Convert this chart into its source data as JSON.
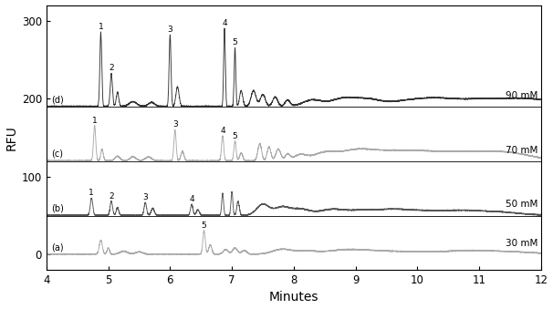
{
  "xlim": [
    4,
    12
  ],
  "ylim": [
    -20,
    320
  ],
  "xlabel": "Minutes",
  "ylabel": "RFU",
  "yticks": [
    0,
    100,
    200,
    300
  ],
  "xticks": [
    4,
    5,
    6,
    7,
    8,
    9,
    10,
    11,
    12
  ],
  "offsets": [
    0,
    50,
    120,
    190
  ],
  "colors": [
    "#aaaaaa",
    "#555555",
    "#aaaaaa",
    "#333333"
  ],
  "labels": [
    "(a)",
    "(b)",
    "(c)",
    "(d)"
  ],
  "annotations": [
    "30 mM",
    "50 mM",
    "70 mM",
    "90 mM"
  ],
  "separator_offsets": [
    50,
    120,
    190
  ],
  "background_color": "#ffffff"
}
